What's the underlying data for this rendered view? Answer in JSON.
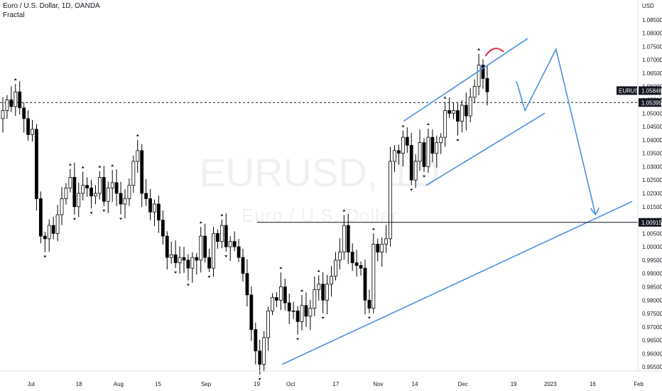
{
  "header": {
    "title": "Euro / U.S. Dollar, 1D, OANDA",
    "indicator": "Fractal"
  },
  "watermark": {
    "symbol": "EURUSD, 1D",
    "name": "Euro / U.S. Dollar"
  },
  "price_axis": {
    "currency": "USD",
    "ticks": [
      "1.08500",
      "1.08000",
      "1.07500",
      "1.07000",
      "1.06500",
      "1.06000",
      "1.05500",
      "1.05000",
      "1.04500",
      "1.04000",
      "1.03500",
      "1.03000",
      "1.02500",
      "1.02000",
      "1.01500",
      "1.01000",
      "1.00500",
      "1.00000",
      "0.99500",
      "0.99000",
      "0.98500",
      "0.98000",
      "0.97500",
      "0.97000",
      "0.96500",
      "0.96000",
      "0.95500"
    ]
  },
  "time_axis": {
    "ticks": [
      "Jul",
      "18",
      "Aug",
      "15",
      "Sep",
      "19",
      "Oct",
      "17",
      "Nov",
      "14",
      "Dec",
      "19",
      "2023",
      "16",
      "Feb"
    ]
  },
  "price_tags": {
    "symbol_label": "EURUSD",
    "last_price": "1.05848",
    "dashed_level": "1.05399",
    "support_level": "1.00915"
  },
  "colors": {
    "up_candle": "#ffffff",
    "down_candle": "#000000",
    "drawing_lines": "#4a90e2",
    "highlight_arc": "#e0344a",
    "tag_dark": "#131722"
  },
  "chart_data": {
    "type": "candlestick",
    "title": "Euro / U.S. Dollar, 1D, OANDA",
    "ylabel": "USD",
    "ylim": [
      0.95,
      1.088
    ],
    "x_range": [
      "2022-06-20",
      "2023-02-01"
    ],
    "x_ticks": [
      {
        "label": "Jul",
        "date": "2022-07-01"
      },
      {
        "label": "18",
        "date": "2022-07-18"
      },
      {
        "label": "Aug",
        "date": "2022-08-01"
      },
      {
        "label": "15",
        "date": "2022-08-15"
      },
      {
        "label": "Sep",
        "date": "2022-09-01"
      },
      {
        "label": "19",
        "date": "2022-09-19"
      },
      {
        "label": "Oct",
        "date": "2022-10-01"
      },
      {
        "label": "17",
        "date": "2022-10-17"
      },
      {
        "label": "Nov",
        "date": "2022-11-01"
      },
      {
        "label": "14",
        "date": "2022-11-14"
      },
      {
        "label": "Dec",
        "date": "2022-12-01"
      },
      {
        "label": "19",
        "date": "2022-12-19"
      },
      {
        "label": "2023",
        "date": "2023-01-01"
      },
      {
        "label": "16",
        "date": "2023-01-16"
      },
      {
        "label": "Feb",
        "date": "2023-02-01"
      }
    ],
    "closes": [
      1.051,
      1.055,
      1.0525,
      1.058,
      1.052,
      1.048,
      1.042,
      1.044,
      1.018,
      1.004,
      1.003,
      1.008,
      1.005,
      1.012,
      1.018,
      1.022,
      1.026,
      1.015,
      1.02,
      1.023,
      1.022,
      1.019,
      1.02,
      1.026,
      1.017,
      1.022,
      1.024,
      1.02,
      1.016,
      1.018,
      1.023,
      1.032,
      1.036,
      1.02,
      1.018,
      1.013,
      1.016,
      1.01,
      1.004,
      0.996,
      0.997,
      0.994,
      0.996,
      0.995,
      0.992,
      0.996,
      0.995,
      1.004,
      0.996,
      0.992,
      1.005,
      1.002,
      1.008,
      1.0,
      1.002,
      1.0,
      0.996,
      0.99,
      0.982,
      0.969,
      0.961,
      0.956,
      0.966,
      0.976,
      0.981,
      0.98,
      0.985,
      0.979,
      0.976,
      0.976,
      0.972,
      0.978,
      0.974,
      0.977,
      0.984,
      0.986,
      0.98,
      0.986,
      0.989,
      0.995,
      0.998,
      1.008,
      0.998,
      0.994,
      0.993,
      0.992,
      0.98,
      0.977,
      1.001,
      0.998,
      1.001,
      1.003,
      1.032,
      1.036,
      1.035,
      1.041,
      1.038,
      1.025,
      1.032,
      1.039,
      1.03,
      1.041,
      1.035,
      1.039,
      1.041,
      1.051,
      1.05,
      1.051,
      1.047,
      1.053,
      1.049,
      1.056,
      1.06,
      1.068,
      1.063,
      1.058
    ],
    "support_level": 1.00915,
    "dashed_level": 1.05399,
    "last_price": 1.05848,
    "drawings": [
      {
        "kind": "channel-upper",
        "points": [
          [
            "2022-11-10",
            1.047
          ],
          [
            "2022-12-24",
            1.078
          ]
        ]
      },
      {
        "kind": "channel-lower",
        "points": [
          [
            "2022-11-18",
            1.023
          ],
          [
            "2022-12-30",
            1.05
          ]
        ]
      },
      {
        "kind": "trendline",
        "points": [
          [
            "2022-09-28",
            0.956
          ],
          [
            "2023-01-30",
            1.017
          ]
        ]
      },
      {
        "kind": "projection",
        "points": [
          [
            "2022-12-20",
            1.062
          ],
          [
            "2022-12-23",
            1.051
          ],
          [
            "2023-01-03",
            1.074
          ],
          [
            "2023-01-17",
            1.012
          ]
        ]
      },
      {
        "kind": "support",
        "points": [
          [
            "2022-09-21",
            1.00915
          ],
          [
            "2023-02-01",
            1.00915
          ]
        ]
      }
    ]
  }
}
